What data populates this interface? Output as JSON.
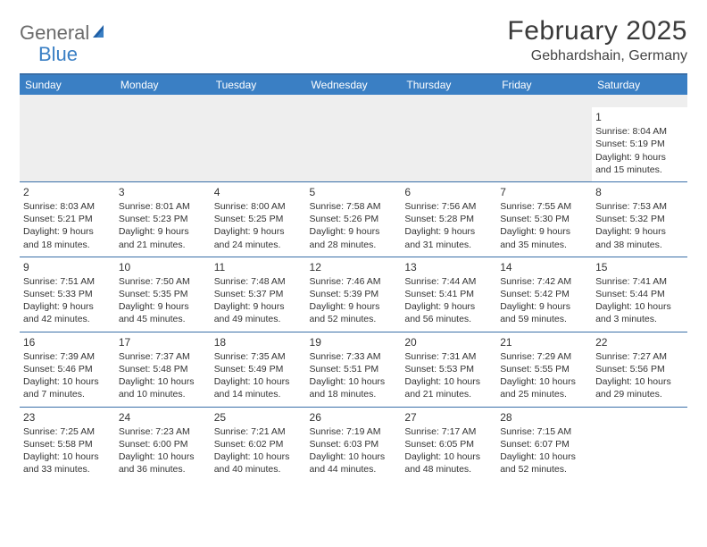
{
  "logo": {
    "text1": "General",
    "text2": "Blue"
  },
  "title": {
    "month": "February 2025",
    "location": "Gebhardshain, Germany"
  },
  "colors": {
    "header_bg": "#3a7fc4",
    "header_text": "#ffffff",
    "rule": "#3a6fa8",
    "blank_row": "#eeeeee",
    "text": "#333333",
    "logo_gray": "#6b6b6b",
    "logo_blue": "#3a7fc4"
  },
  "columns": [
    "Sunday",
    "Monday",
    "Tuesday",
    "Wednesday",
    "Thursday",
    "Friday",
    "Saturday"
  ],
  "weeks": [
    [
      {
        "n": "",
        "sr": "",
        "ss": "",
        "dl": ""
      },
      {
        "n": "",
        "sr": "",
        "ss": "",
        "dl": ""
      },
      {
        "n": "",
        "sr": "",
        "ss": "",
        "dl": ""
      },
      {
        "n": "",
        "sr": "",
        "ss": "",
        "dl": ""
      },
      {
        "n": "",
        "sr": "",
        "ss": "",
        "dl": ""
      },
      {
        "n": "",
        "sr": "",
        "ss": "",
        "dl": ""
      },
      {
        "n": "1",
        "sr": "Sunrise: 8:04 AM",
        "ss": "Sunset: 5:19 PM",
        "dl": "Daylight: 9 hours and 15 minutes."
      }
    ],
    [
      {
        "n": "2",
        "sr": "Sunrise: 8:03 AM",
        "ss": "Sunset: 5:21 PM",
        "dl": "Daylight: 9 hours and 18 minutes."
      },
      {
        "n": "3",
        "sr": "Sunrise: 8:01 AM",
        "ss": "Sunset: 5:23 PM",
        "dl": "Daylight: 9 hours and 21 minutes."
      },
      {
        "n": "4",
        "sr": "Sunrise: 8:00 AM",
        "ss": "Sunset: 5:25 PM",
        "dl": "Daylight: 9 hours and 24 minutes."
      },
      {
        "n": "5",
        "sr": "Sunrise: 7:58 AM",
        "ss": "Sunset: 5:26 PM",
        "dl": "Daylight: 9 hours and 28 minutes."
      },
      {
        "n": "6",
        "sr": "Sunrise: 7:56 AM",
        "ss": "Sunset: 5:28 PM",
        "dl": "Daylight: 9 hours and 31 minutes."
      },
      {
        "n": "7",
        "sr": "Sunrise: 7:55 AM",
        "ss": "Sunset: 5:30 PM",
        "dl": "Daylight: 9 hours and 35 minutes."
      },
      {
        "n": "8",
        "sr": "Sunrise: 7:53 AM",
        "ss": "Sunset: 5:32 PM",
        "dl": "Daylight: 9 hours and 38 minutes."
      }
    ],
    [
      {
        "n": "9",
        "sr": "Sunrise: 7:51 AM",
        "ss": "Sunset: 5:33 PM",
        "dl": "Daylight: 9 hours and 42 minutes."
      },
      {
        "n": "10",
        "sr": "Sunrise: 7:50 AM",
        "ss": "Sunset: 5:35 PM",
        "dl": "Daylight: 9 hours and 45 minutes."
      },
      {
        "n": "11",
        "sr": "Sunrise: 7:48 AM",
        "ss": "Sunset: 5:37 PM",
        "dl": "Daylight: 9 hours and 49 minutes."
      },
      {
        "n": "12",
        "sr": "Sunrise: 7:46 AM",
        "ss": "Sunset: 5:39 PM",
        "dl": "Daylight: 9 hours and 52 minutes."
      },
      {
        "n": "13",
        "sr": "Sunrise: 7:44 AM",
        "ss": "Sunset: 5:41 PM",
        "dl": "Daylight: 9 hours and 56 minutes."
      },
      {
        "n": "14",
        "sr": "Sunrise: 7:42 AM",
        "ss": "Sunset: 5:42 PM",
        "dl": "Daylight: 9 hours and 59 minutes."
      },
      {
        "n": "15",
        "sr": "Sunrise: 7:41 AM",
        "ss": "Sunset: 5:44 PM",
        "dl": "Daylight: 10 hours and 3 minutes."
      }
    ],
    [
      {
        "n": "16",
        "sr": "Sunrise: 7:39 AM",
        "ss": "Sunset: 5:46 PM",
        "dl": "Daylight: 10 hours and 7 minutes."
      },
      {
        "n": "17",
        "sr": "Sunrise: 7:37 AM",
        "ss": "Sunset: 5:48 PM",
        "dl": "Daylight: 10 hours and 10 minutes."
      },
      {
        "n": "18",
        "sr": "Sunrise: 7:35 AM",
        "ss": "Sunset: 5:49 PM",
        "dl": "Daylight: 10 hours and 14 minutes."
      },
      {
        "n": "19",
        "sr": "Sunrise: 7:33 AM",
        "ss": "Sunset: 5:51 PM",
        "dl": "Daylight: 10 hours and 18 minutes."
      },
      {
        "n": "20",
        "sr": "Sunrise: 7:31 AM",
        "ss": "Sunset: 5:53 PM",
        "dl": "Daylight: 10 hours and 21 minutes."
      },
      {
        "n": "21",
        "sr": "Sunrise: 7:29 AM",
        "ss": "Sunset: 5:55 PM",
        "dl": "Daylight: 10 hours and 25 minutes."
      },
      {
        "n": "22",
        "sr": "Sunrise: 7:27 AM",
        "ss": "Sunset: 5:56 PM",
        "dl": "Daylight: 10 hours and 29 minutes."
      }
    ],
    [
      {
        "n": "23",
        "sr": "Sunrise: 7:25 AM",
        "ss": "Sunset: 5:58 PM",
        "dl": "Daylight: 10 hours and 33 minutes."
      },
      {
        "n": "24",
        "sr": "Sunrise: 7:23 AM",
        "ss": "Sunset: 6:00 PM",
        "dl": "Daylight: 10 hours and 36 minutes."
      },
      {
        "n": "25",
        "sr": "Sunrise: 7:21 AM",
        "ss": "Sunset: 6:02 PM",
        "dl": "Daylight: 10 hours and 40 minutes."
      },
      {
        "n": "26",
        "sr": "Sunrise: 7:19 AM",
        "ss": "Sunset: 6:03 PM",
        "dl": "Daylight: 10 hours and 44 minutes."
      },
      {
        "n": "27",
        "sr": "Sunrise: 7:17 AM",
        "ss": "Sunset: 6:05 PM",
        "dl": "Daylight: 10 hours and 48 minutes."
      },
      {
        "n": "28",
        "sr": "Sunrise: 7:15 AM",
        "ss": "Sunset: 6:07 PM",
        "dl": "Daylight: 10 hours and 52 minutes."
      },
      {
        "n": "",
        "sr": "",
        "ss": "",
        "dl": ""
      }
    ]
  ]
}
